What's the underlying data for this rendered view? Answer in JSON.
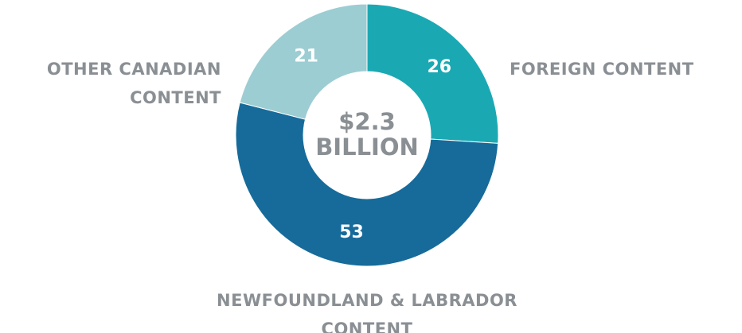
{
  "chart_data": {
    "type": "donut",
    "center_label": [
      "$2.3",
      "BILLION"
    ],
    "categories": [
      "FOREIGN CONTENT",
      "NEWFOUNDLAND & LABRADOR CONTENT",
      "OTHER CANADIAN CONTENT"
    ],
    "values": [
      26,
      53,
      21
    ],
    "colors": [
      "#1aa9b3",
      "#166b9a",
      "#9ccdd2"
    ]
  }
}
